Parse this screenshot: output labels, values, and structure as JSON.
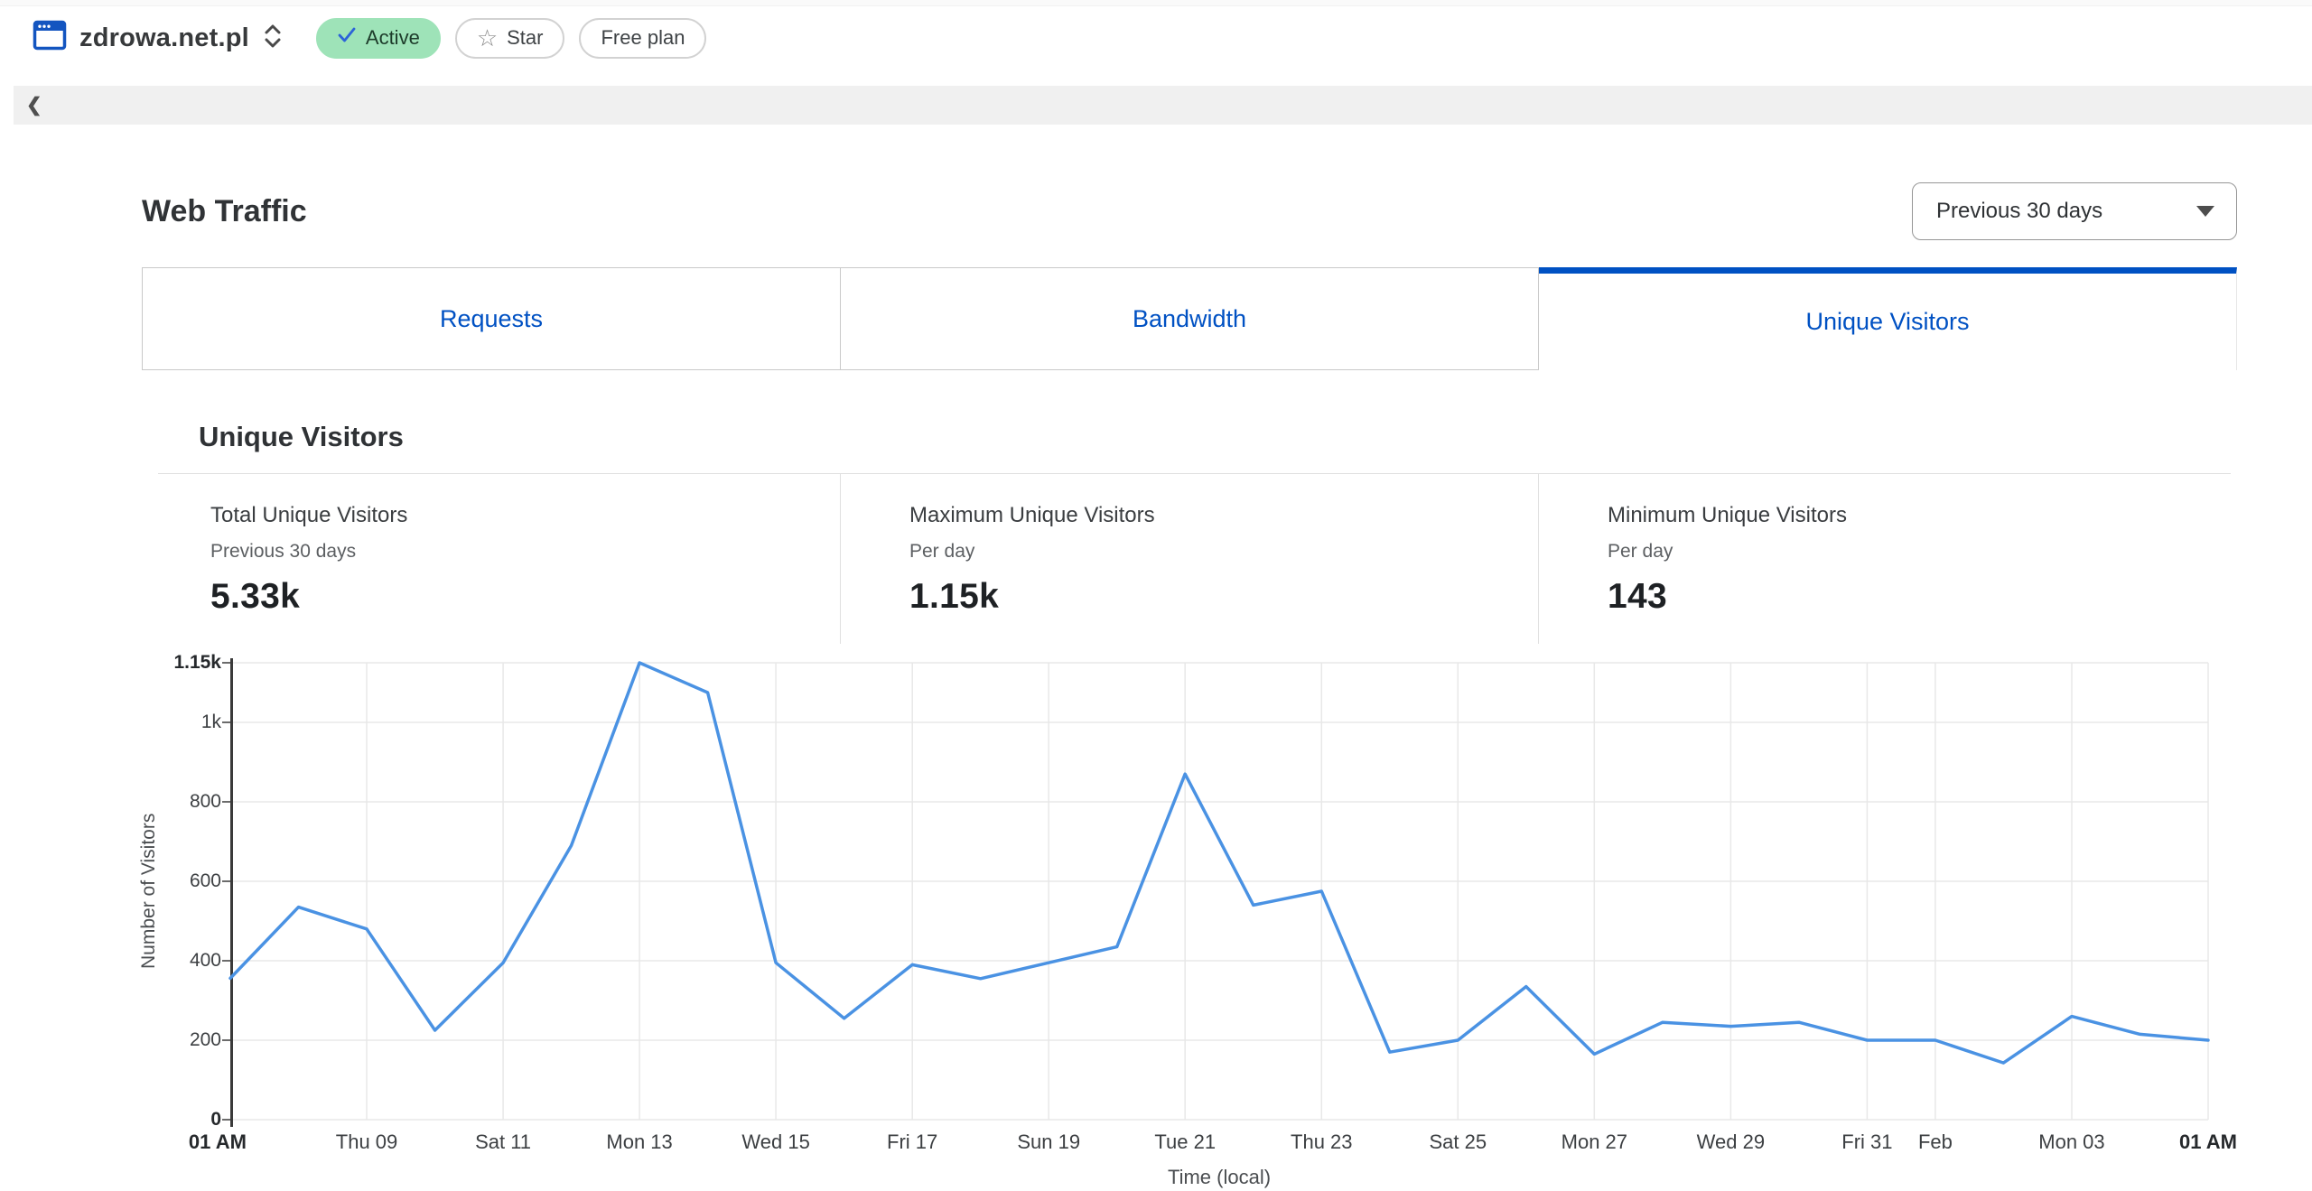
{
  "header": {
    "domain": "zdrowa.net.pl",
    "active_badge": "Active",
    "star_button": "Star",
    "plan_badge": "Free plan"
  },
  "icons": {
    "back": "❮",
    "star": "☆"
  },
  "page": {
    "title": "Web Traffic"
  },
  "range_select": {
    "value": "Previous 30 days"
  },
  "tabs": [
    {
      "label": "Requests",
      "active": false
    },
    {
      "label": "Bandwidth",
      "active": false
    },
    {
      "label": "Unique Visitors",
      "active": true
    }
  ],
  "section": {
    "title": "Unique Visitors"
  },
  "stats": [
    {
      "title": "Total Unique Visitors",
      "subtitle": "Previous 30 days",
      "value": "5.33k"
    },
    {
      "title": "Maximum Unique Visitors",
      "subtitle": "Per day",
      "value": "1.15k"
    },
    {
      "title": "Minimum Unique Visitors",
      "subtitle": "Per day",
      "value": "143"
    }
  ],
  "chart_data": {
    "type": "line",
    "title": "Unique Visitors per day, previous 30 days",
    "xlabel": "Time (local)",
    "ylabel": "Number of Visitors",
    "ylim": [
      0,
      1150
    ],
    "grid": true,
    "legend": "none",
    "line_color": "#4a92e3",
    "grid_color": "#e8e8e8",
    "axis_color": "#3a3a3a",
    "values": [
      356,
      535,
      480,
      225,
      395,
      690,
      1150,
      1075,
      395,
      255,
      390,
      355,
      395,
      435,
      870,
      540,
      575,
      170,
      200,
      335,
      165,
      245,
      235,
      245,
      200,
      200,
      143,
      260,
      215,
      200
    ],
    "y_ticks": [
      {
        "label": "1.15k",
        "value": 1150,
        "bold": true
      },
      {
        "label": "1k",
        "value": 1000
      },
      {
        "label": "800",
        "value": 800
      },
      {
        "label": "600",
        "value": 600
      },
      {
        "label": "400",
        "value": 400
      },
      {
        "label": "200",
        "value": 200
      },
      {
        "label": "0",
        "value": 0,
        "bold": true
      }
    ],
    "x_ticks": [
      {
        "label": "01 AM",
        "day": 0,
        "bold": true
      },
      {
        "label": "Thu 09",
        "day": 2
      },
      {
        "label": "Sat 11",
        "day": 4
      },
      {
        "label": "Mon 13",
        "day": 6
      },
      {
        "label": "Wed 15",
        "day": 8
      },
      {
        "label": "Fri 17",
        "day": 10
      },
      {
        "label": "Sun 19",
        "day": 12
      },
      {
        "label": "Tue 21",
        "day": 14
      },
      {
        "label": "Thu 23",
        "day": 16
      },
      {
        "label": "Sat 25",
        "day": 18
      },
      {
        "label": "Mon 27",
        "day": 20
      },
      {
        "label": "Wed 29",
        "day": 22
      },
      {
        "label": "Fri 31",
        "day": 24
      },
      {
        "label": "Feb",
        "day": 25
      },
      {
        "label": "Mon 03",
        "day": 27
      },
      {
        "label": "01 AM",
        "day": 29,
        "bold": true
      }
    ]
  }
}
